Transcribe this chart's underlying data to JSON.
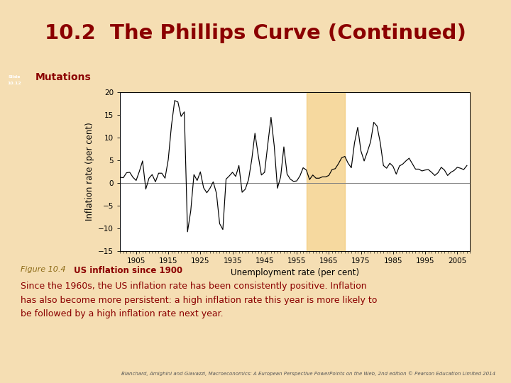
{
  "title": "10.2  The Phillips Curve (Continued)",
  "subtitle": "Mutations",
  "slide_label": "Slide\n10.12",
  "fig_label": "Figure 10.4",
  "fig_title": "US inflation since 1900",
  "caption_line1": "Since the 1960s, the US inflation rate has been consistently positive. Inflation",
  "caption_line2": "has also become more persistent: a high inflation rate this year is more likely to",
  "caption_line3": "be followed by a high inflation rate next year.",
  "footnote": "Blanchard, Amighini and Giavazzi, Macroeconomics: A European Perspective PowerPoints on the Web, 2nd edition © Pearson Education Limited 2014",
  "xlabel": "Unemployment rate (per cent)",
  "ylabel": "Inflation rate (per cent)",
  "bg_color": "#F5DEB3",
  "subtitle_bar_color": "#C8A020",
  "slide_box_color": "#7B3B00",
  "band_color": "#F0C060",
  "band_alpha": 0.6,
  "band_xstart": 1958,
  "band_xend": 1970,
  "ylim": [
    -15,
    20
  ],
  "xlim": [
    1900,
    2009
  ],
  "yticks": [
    -15,
    -10,
    -5,
    0,
    5,
    10,
    15,
    20
  ],
  "xticks": [
    1905,
    1915,
    1925,
    1935,
    1945,
    1955,
    1965,
    1975,
    1985,
    1995,
    2005
  ],
  "years": [
    1900,
    1901,
    1902,
    1903,
    1904,
    1905,
    1906,
    1907,
    1908,
    1909,
    1910,
    1911,
    1912,
    1913,
    1914,
    1915,
    1916,
    1917,
    1918,
    1919,
    1920,
    1921,
    1922,
    1923,
    1924,
    1925,
    1926,
    1927,
    1928,
    1929,
    1930,
    1931,
    1932,
    1933,
    1934,
    1935,
    1936,
    1937,
    1938,
    1939,
    1940,
    1941,
    1942,
    1943,
    1944,
    1945,
    1946,
    1947,
    1948,
    1949,
    1950,
    1951,
    1952,
    1953,
    1954,
    1955,
    1956,
    1957,
    1958,
    1959,
    1960,
    1961,
    1962,
    1963,
    1964,
    1965,
    1966,
    1967,
    1968,
    1969,
    1970,
    1971,
    1972,
    1973,
    1974,
    1975,
    1976,
    1977,
    1978,
    1979,
    1980,
    1981,
    1982,
    1983,
    1984,
    1985,
    1986,
    1987,
    1988,
    1989,
    1990,
    1991,
    1992,
    1993,
    1994,
    1995,
    1996,
    1997,
    1998,
    1999,
    2000,
    2001,
    2002,
    2003,
    2004,
    2005,
    2006,
    2007,
    2008
  ],
  "inflation": [
    1.2,
    1.1,
    2.2,
    2.3,
    1.2,
    0.5,
    2.5,
    4.8,
    -1.4,
    1.0,
    1.8,
    0.2,
    2.1,
    2.1,
    1.0,
    5.1,
    12.6,
    18.1,
    17.8,
    14.6,
    15.6,
    -10.8,
    -6.2,
    1.8,
    0.5,
    2.4,
    -1.1,
    -2.2,
    -1.2,
    0.2,
    -2.3,
    -9.0,
    -10.3,
    0.8,
    1.5,
    2.3,
    1.4,
    3.8,
    -2.1,
    -1.4,
    0.7,
    5.1,
    10.9,
    6.1,
    1.7,
    2.3,
    8.5,
    14.4,
    8.1,
    -1.2,
    1.3,
    7.9,
    1.9,
    0.8,
    0.3,
    0.4,
    1.5,
    3.3,
    2.8,
    0.7,
    1.7,
    1.0,
    1.0,
    1.3,
    1.3,
    1.6,
    2.9,
    3.1,
    4.2,
    5.5,
    5.8,
    4.3,
    3.3,
    8.8,
    12.2,
    7.0,
    4.8,
    6.8,
    9.0,
    13.3,
    12.5,
    8.9,
    3.8,
    3.2,
    4.3,
    3.6,
    1.9,
    3.7,
    4.1,
    4.8,
    5.4,
    4.2,
    3.0,
    3.0,
    2.6,
    2.8,
    2.9,
    2.3,
    1.6,
    2.2,
    3.4,
    2.8,
    1.6,
    2.3,
    2.7,
    3.4,
    3.2,
    2.9,
    3.8
  ]
}
